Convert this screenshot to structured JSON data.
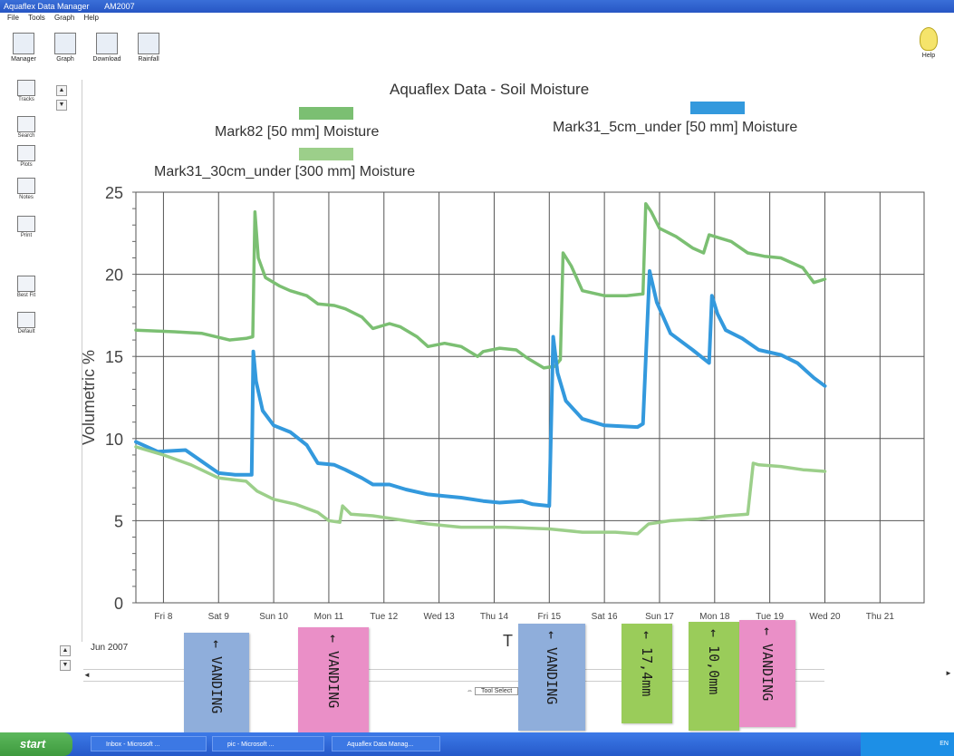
{
  "window": {
    "title": "Aquaflex Data Manager",
    "version": "AM2007"
  },
  "menu": [
    "File",
    "Tools",
    "Graph",
    "Help"
  ],
  "toolbar": {
    "buttons": [
      "Manager",
      "Graph",
      "Download",
      "Rainfall"
    ],
    "help_label": "Help"
  },
  "sidebar": {
    "items": [
      "Tracks",
      "Search",
      "Plots",
      "Notes",
      "Print",
      "Best Fit",
      "Default"
    ]
  },
  "colors": {
    "mark82": "#7bbf72",
    "mark31_5cm": "#3399dd",
    "mark31_30cm": "#9ccf8a",
    "grid": "#555555",
    "note_blue": "#8faedb",
    "note_pink": "#ea8fc7",
    "note_green": "#9acc5a"
  },
  "chart_data": {
    "type": "line",
    "title": "Aquaflex Data - Soil Moisture",
    "xlabel": "",
    "ylabel": "Volumetric %",
    "ylim": [
      0,
      25
    ],
    "yticks": [
      "0",
      "5",
      "10",
      "15",
      "20",
      "25"
    ],
    "xlim": [
      7.5,
      21.8
    ],
    "xticks": [
      {
        "x": 8,
        "label": "Fri 8"
      },
      {
        "x": 9,
        "label": "Sat 9"
      },
      {
        "x": 10,
        "label": "Sun 10"
      },
      {
        "x": 11,
        "label": "Mon 11"
      },
      {
        "x": 12,
        "label": "Tue 12"
      },
      {
        "x": 13,
        "label": "Wed 13"
      },
      {
        "x": 14,
        "label": "Thu 14"
      },
      {
        "x": 15,
        "label": "Fri 15"
      },
      {
        "x": 16,
        "label": "Sat 16"
      },
      {
        "x": 17,
        "label": "Sun 17"
      },
      {
        "x": 18,
        "label": "Mon 18"
      },
      {
        "x": 19,
        "label": "Tue 19"
      },
      {
        "x": 20,
        "label": "Wed 20"
      },
      {
        "x": 21,
        "label": "Thu 21"
      }
    ],
    "date_label": "Jun 2007",
    "x_axis_title": "T",
    "grid": true,
    "legend": "top",
    "series": [
      {
        "name": "Mark82  [50 mm] Moisture",
        "x": [
          7.5,
          8.2,
          8.7,
          9.2,
          9.5,
          9.62,
          9.66,
          9.72,
          9.85,
          10.1,
          10.3,
          10.6,
          10.8,
          11.1,
          11.3,
          11.6,
          11.8,
          12.1,
          12.3,
          12.6,
          12.8,
          13.1,
          13.4,
          13.7,
          13.8,
          14.1,
          14.4,
          14.6,
          14.9,
          15.1,
          15.2,
          15.25,
          15.4,
          15.6,
          16.0,
          16.4,
          16.7,
          16.75,
          16.85,
          17.0,
          17.3,
          17.6,
          17.8,
          17.9,
          18.3,
          18.6,
          18.9,
          19.2,
          19.6,
          19.8,
          20.0
        ],
        "y": [
          16.6,
          16.5,
          16.4,
          16.0,
          16.1,
          16.2,
          23.8,
          21.0,
          19.8,
          19.3,
          19.0,
          18.7,
          18.2,
          18.1,
          17.9,
          17.4,
          16.7,
          17.0,
          16.8,
          16.2,
          15.6,
          15.8,
          15.6,
          15.0,
          15.3,
          15.5,
          15.4,
          14.9,
          14.3,
          14.4,
          14.8,
          21.3,
          20.5,
          19.0,
          18.7,
          18.7,
          18.8,
          24.3,
          23.8,
          22.8,
          22.3,
          21.6,
          21.3,
          22.4,
          22.0,
          21.3,
          21.1,
          21.0,
          20.4,
          19.5,
          19.7
        ]
      },
      {
        "name": "Mark31_5cm_under  [50 mm] Moisture",
        "x": [
          7.5,
          7.9,
          8.4,
          8.7,
          9.0,
          9.3,
          9.6,
          9.63,
          9.68,
          9.8,
          10.0,
          10.3,
          10.6,
          10.8,
          11.1,
          11.3,
          11.6,
          11.8,
          12.1,
          12.4,
          12.8,
          13.1,
          13.4,
          13.8,
          14.1,
          14.5,
          14.7,
          15.0,
          15.07,
          15.15,
          15.3,
          15.6,
          16.0,
          16.6,
          16.7,
          16.82,
          16.95,
          17.2,
          17.6,
          17.9,
          17.95,
          18.05,
          18.2,
          18.5,
          18.8,
          19.2,
          19.5,
          19.8,
          20.0
        ],
        "y": [
          9.8,
          9.2,
          9.3,
          8.6,
          7.9,
          7.8,
          7.8,
          15.3,
          13.5,
          11.7,
          10.8,
          10.4,
          9.6,
          8.5,
          8.4,
          8.1,
          7.6,
          7.2,
          7.2,
          6.9,
          6.6,
          6.5,
          6.4,
          6.2,
          6.1,
          6.2,
          6.0,
          5.9,
          16.2,
          14.0,
          12.3,
          11.2,
          10.8,
          10.7,
          10.9,
          20.2,
          18.3,
          16.4,
          15.4,
          14.6,
          18.7,
          17.6,
          16.6,
          16.1,
          15.4,
          15.1,
          14.6,
          13.7,
          13.2
        ]
      },
      {
        "name": "Mark31_30cm_under  [300 mm] Moisture",
        "x": [
          7.5,
          8.0,
          8.5,
          9.0,
          9.5,
          9.7,
          10.0,
          10.4,
          10.8,
          11.0,
          11.2,
          11.25,
          11.4,
          11.8,
          12.2,
          12.8,
          13.4,
          14.2,
          15.0,
          15.6,
          16.2,
          16.6,
          16.8,
          17.2,
          17.7,
          18.2,
          18.6,
          18.7,
          18.8,
          19.2,
          19.6,
          20.0
        ],
        "y": [
          9.5,
          9.0,
          8.4,
          7.6,
          7.4,
          6.8,
          6.3,
          6.0,
          5.5,
          5.0,
          4.9,
          5.9,
          5.4,
          5.3,
          5.1,
          4.8,
          4.6,
          4.6,
          4.5,
          4.3,
          4.3,
          4.2,
          4.8,
          5.0,
          5.1,
          5.3,
          5.4,
          8.5,
          8.4,
          8.3,
          8.1,
          8.0
        ]
      }
    ]
  },
  "footer": {
    "tool_select": "Tool Select"
  },
  "notes": [
    {
      "text": "← VANDING",
      "color": "blue"
    },
    {
      "text": "← VANDING",
      "color": "pink"
    },
    {
      "text": "← VANDING",
      "color": "blue"
    },
    {
      "text": "← 17,4mm",
      "color": "green"
    },
    {
      "text": "← 10,0mm",
      "color": "green"
    },
    {
      "text": "← VANDING",
      "color": "pink"
    }
  ],
  "taskbar": {
    "start_label": "start",
    "tasks": [
      "Inbox - Microsoft ...",
      "pic - Microsoft ...",
      "Aquaflex Data Manag..."
    ],
    "tray_text": "EN"
  }
}
